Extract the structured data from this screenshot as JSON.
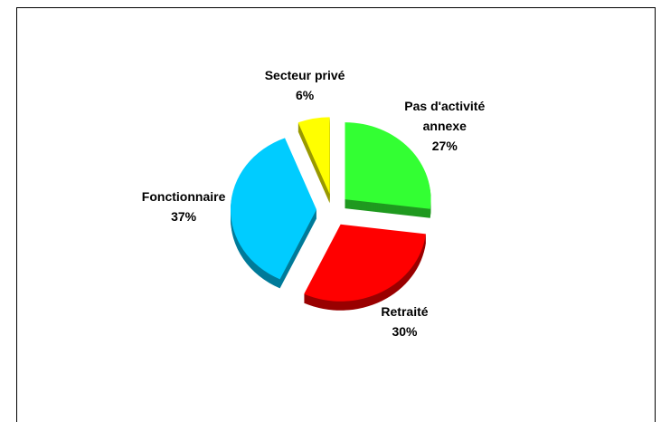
{
  "chart_data": {
    "type": "pie",
    "categories": [
      "Pas d'activité annexe",
      "Retraité",
      "Fonctionnaire",
      "Secteur privé"
    ],
    "values": [
      27,
      30,
      37,
      6
    ],
    "value_labels": [
      "27%",
      "30%",
      "37%",
      "6%"
    ],
    "colors": [
      "#33ff33",
      "#ff0000",
      "#00ccff",
      "#ffff00"
    ]
  }
}
